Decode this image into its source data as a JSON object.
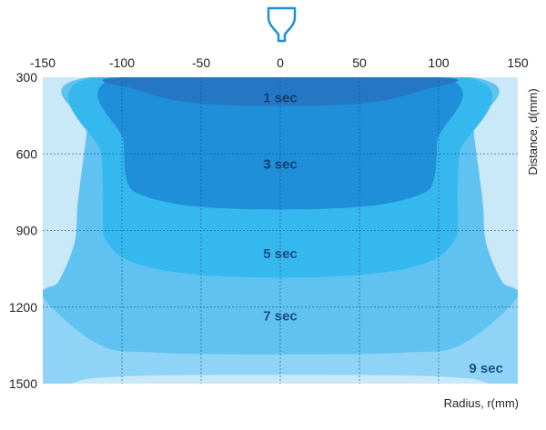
{
  "chart_data": {
    "type": "heatmap",
    "xlabel": "Radius, r(mm)",
    "ylabel": "Distance, d(mm)",
    "x_ticks": [
      -150,
      -100,
      -50,
      0,
      50,
      100,
      150
    ],
    "y_ticks": [
      300,
      600,
      900,
      1200,
      1500
    ],
    "xlim": [
      -150,
      150
    ],
    "ylim": [
      300,
      1500
    ],
    "grid": true,
    "background_color": "#c9e8f8",
    "source_icon": "dome-light-icon",
    "zones": [
      {
        "label": "9 sec",
        "color": "#8fd3f7",
        "label_color": "#1a4f86",
        "label_position": [
          130,
          1440
        ],
        "boundary": [
          [
            -150,
            1160
          ],
          [
            -140,
            1100
          ],
          [
            -130,
            950
          ],
          [
            -128,
            800
          ],
          [
            -125,
            650
          ],
          [
            -122,
            500
          ],
          [
            -120,
            300
          ],
          [
            120,
            300
          ],
          [
            122,
            500
          ],
          [
            125,
            650
          ],
          [
            128,
            800
          ],
          [
            130,
            950
          ],
          [
            140,
            1100
          ],
          [
            150,
            1160
          ],
          [
            150,
            1500
          ],
          [
            120,
            1480
          ],
          [
            80,
            1468
          ],
          [
            0,
            1465
          ],
          [
            -80,
            1468
          ],
          [
            -120,
            1480
          ],
          [
            -150,
            1500
          ]
        ]
      },
      {
        "label": "7 sec",
        "color": "#5fc2f0",
        "label_color": "#1a4f86",
        "label_position": [
          0,
          1235
        ],
        "boundary": [
          [
            -150,
            1160
          ],
          [
            -115,
            1345
          ],
          [
            -80,
            1378
          ],
          [
            0,
            1385
          ],
          [
            80,
            1378
          ],
          [
            115,
            1345
          ],
          [
            150,
            1160
          ],
          [
            140,
            1100
          ],
          [
            130,
            950
          ],
          [
            128,
            800
          ],
          [
            125,
            650
          ],
          [
            122,
            500
          ],
          [
            120,
            300
          ],
          [
            -120,
            300
          ],
          [
            -122,
            500
          ],
          [
            -125,
            650
          ],
          [
            -128,
            800
          ],
          [
            -130,
            950
          ],
          [
            -140,
            1100
          ]
        ]
      },
      {
        "label": "5 sec",
        "color": "#35b8ee",
        "label_color": "#1a4f86",
        "label_position": [
          0,
          990
        ],
        "boundary": [
          [
            -118,
            300
          ],
          [
            -113,
            600
          ],
          [
            -112,
            750
          ],
          [
            -112,
            870
          ],
          [
            -110,
            940
          ],
          [
            -95,
            1020
          ],
          [
            -60,
            1068
          ],
          [
            0,
            1085
          ],
          [
            60,
            1068
          ],
          [
            95,
            1020
          ],
          [
            110,
            940
          ],
          [
            112,
            870
          ],
          [
            112,
            750
          ],
          [
            113,
            600
          ],
          [
            118,
            300
          ]
        ]
      },
      {
        "label": "3 sec",
        "color": "#1e8fd8",
        "label_color": "#12406e",
        "label_position": [
          0,
          640
        ],
        "boundary": [
          [
            -101,
            300
          ],
          [
            -99,
            550
          ],
          [
            -97,
            700
          ],
          [
            -88,
            760
          ],
          [
            -55,
            805
          ],
          [
            0,
            818
          ],
          [
            55,
            805
          ],
          [
            88,
            760
          ],
          [
            97,
            700
          ],
          [
            99,
            550
          ],
          [
            101,
            300
          ]
        ]
      },
      {
        "label": "1 sec",
        "color": "#2577c4",
        "label_color": "#12406e",
        "label_position": [
          0,
          380
        ],
        "boundary": [
          [
            -99,
            300
          ],
          [
            -90,
            350
          ],
          [
            -55,
            400
          ],
          [
            0,
            412
          ],
          [
            55,
            400
          ],
          [
            90,
            350
          ],
          [
            99,
            300
          ]
        ]
      }
    ]
  }
}
